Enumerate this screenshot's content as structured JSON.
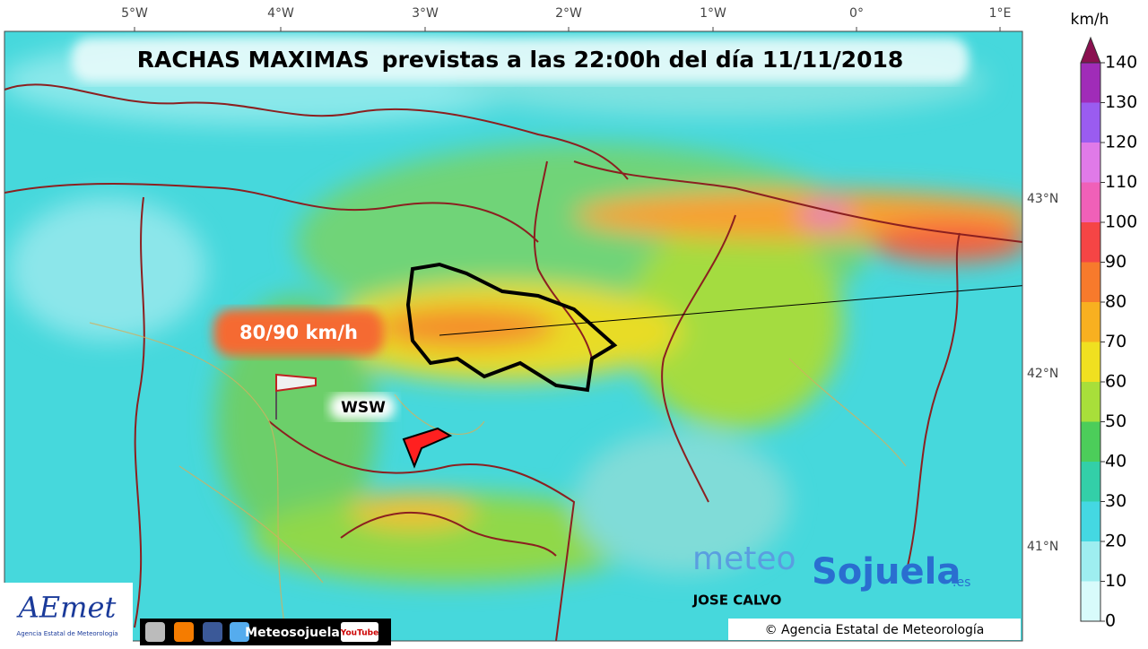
{
  "title": {
    "main": "RACHAS MAXIMAS",
    "rest": "previstas a las 22:00h del día 11/11/2018"
  },
  "longitude_labels": [
    "5°W",
    "4°W",
    "3°W",
    "2°W",
    "1°W",
    "0°",
    "1°E"
  ],
  "latitude_labels": [
    "43°N",
    "42°N",
    "41°N"
  ],
  "colorbar": {
    "unit": "km/h",
    "ticks": [
      0,
      10,
      20,
      30,
      40,
      50,
      60,
      70,
      80,
      90,
      100,
      110,
      120,
      130,
      140
    ],
    "colors": [
      "#d8fbfb",
      "#9eeef0",
      "#44d8e2",
      "#33cfa8",
      "#4ccd5a",
      "#a8df3a",
      "#f0e020",
      "#f8b020",
      "#f77a2c",
      "#f54545",
      "#f060b8",
      "#e07ae8",
      "#9a5cf0",
      "#a02cb8"
    ]
  },
  "annotations": {
    "gust": "80/90 km/h",
    "direction": "WSW"
  },
  "credits": {
    "author": "JOSE CALVO",
    "copyright": "© Agencia Estatal de Meteorología",
    "social": "Meteosojuela",
    "youtube": "YouTube",
    "brand_prefix": "meteo",
    "brand": "Sojuela",
    "brand_suffix": ".es",
    "logo": "AEmet",
    "logo_sub": "Agencia Estatal de Meteorología"
  }
}
